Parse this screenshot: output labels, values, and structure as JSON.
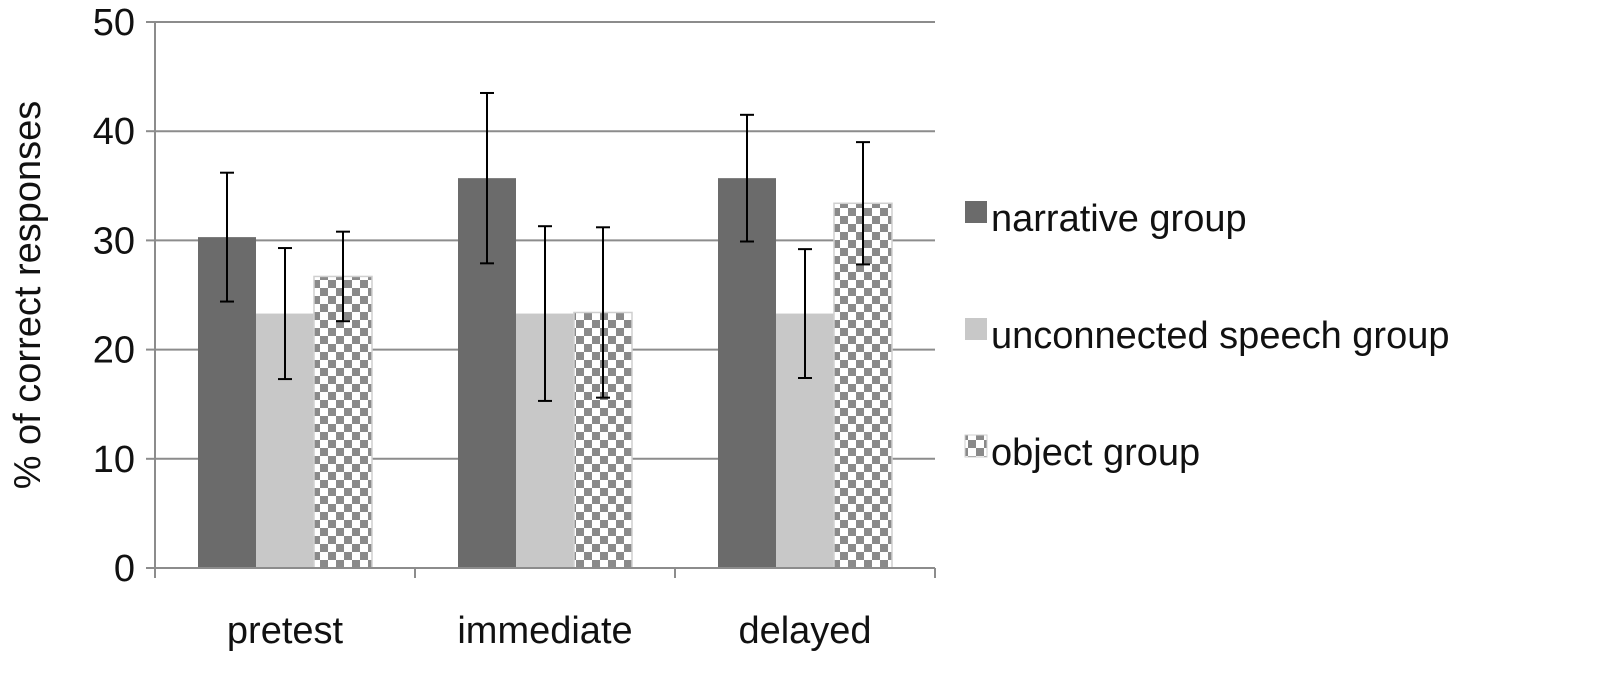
{
  "chart_data": {
    "type": "bar",
    "title": "",
    "xlabel": "",
    "ylabel": "% of correct responses",
    "ylim": [
      0,
      50
    ],
    "yticks": [
      0,
      10,
      20,
      30,
      40,
      50
    ],
    "grid": true,
    "legend_position": "right",
    "categories": [
      "pretest",
      "immediate",
      "delayed"
    ],
    "series": [
      {
        "name": "narrative group",
        "color": "#6b6b6b",
        "pattern": "solid",
        "values": [
          30.3,
          35.7,
          35.7
        ],
        "errors": [
          5.9,
          7.8,
          5.8
        ]
      },
      {
        "name": "unconnected speech group",
        "color": "#c8c8c8",
        "pattern": "solid",
        "values": [
          23.3,
          23.3,
          23.3
        ],
        "errors": [
          6.0,
          8.0,
          5.9
        ]
      },
      {
        "name": "object group",
        "color": "#8a8a8a",
        "pattern": "checkerboard",
        "values": [
          26.7,
          23.4,
          33.4
        ],
        "errors": [
          4.1,
          7.8,
          5.6
        ]
      }
    ]
  }
}
